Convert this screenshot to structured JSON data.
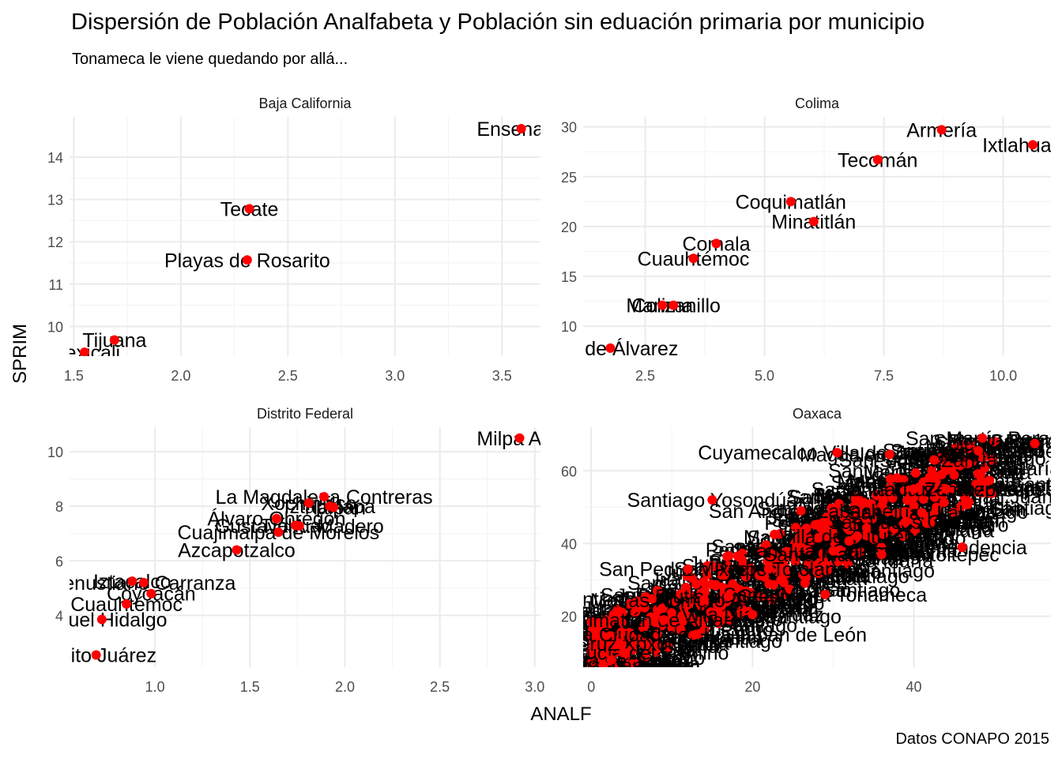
{
  "title": "Dispersión de Población Analfabeta y Población sin eduación primaria por municipio",
  "subtitle": "Tonameca le viene quedando por allá...",
  "caption": "Datos CONAPO 2015",
  "colors": {
    "point": "#ff0000",
    "grid_major": "#ebebeb",
    "grid_minor": "#f5f5f5",
    "label": "#000000"
  },
  "chart_data": {
    "type": "scatter",
    "xlabel": "ANALF",
    "ylabel": "SPRIM",
    "grid": true,
    "facets": [
      {
        "name": "Baja California",
        "xlim": [
          1.48,
          3.68
        ],
        "ylim": [
          9.3,
          14.95
        ],
        "xticks": [
          1.5,
          2.0,
          2.5,
          3.0,
          3.5
        ],
        "yticks": [
          10,
          11,
          12,
          13,
          14
        ],
        "xtick_labels": [
          "1.5",
          "2.0",
          "2.5",
          "3.0",
          "3.5"
        ],
        "ytick_labels": [
          "10",
          "11",
          "12",
          "13",
          "14"
        ],
        "points": [
          {
            "label": "Ensenada",
            "x": 3.59,
            "y": 14.67
          },
          {
            "label": "Tecate",
            "x": 2.32,
            "y": 12.78
          },
          {
            "label": "Playas de Rosarito",
            "x": 2.31,
            "y": 11.57
          },
          {
            "label": "Tijuana",
            "x": 1.69,
            "y": 9.68
          },
          {
            "label": "Mexicali",
            "x": 1.55,
            "y": 9.39
          }
        ]
      },
      {
        "name": "Colima",
        "xlim": [
          1.2,
          11.0
        ],
        "ylim": [
          7.0,
          31.0
        ],
        "xticks": [
          2.5,
          5.0,
          7.5,
          10.0
        ],
        "yticks": [
          10,
          15,
          20,
          25,
          30
        ],
        "xtick_labels": [
          "2.5",
          "5.0",
          "7.5",
          "10.0"
        ],
        "ytick_labels": [
          "10",
          "15",
          "20",
          "25",
          "30"
        ],
        "points": [
          {
            "label": "Armería",
            "x": 8.71,
            "y": 29.7
          },
          {
            "label": "Ixtlahuacán",
            "x": 10.62,
            "y": 28.2
          },
          {
            "label": "Tecomán",
            "x": 7.37,
            "y": 26.7
          },
          {
            "label": "Coquimatlán",
            "x": 5.55,
            "y": 22.5
          },
          {
            "label": "Minatitlán",
            "x": 6.03,
            "y": 20.5
          },
          {
            "label": "Comala",
            "x": 3.99,
            "y": 18.3
          },
          {
            "label": "Cuauhtémoc",
            "x": 3.51,
            "y": 16.8
          },
          {
            "label": "Manzanillo",
            "x": 3.09,
            "y": 12.1
          },
          {
            "label": "Colima",
            "x": 2.86,
            "y": 12.1
          },
          {
            "label": "Villa de Álvarez",
            "x": 1.77,
            "y": 7.8
          }
        ]
      },
      {
        "name": "Distrito Federal",
        "xlim": [
          0.55,
          3.03
        ],
        "ylim": [
          2.1,
          10.9
        ],
        "xticks": [
          1.0,
          1.5,
          2.0,
          2.5,
          3.0
        ],
        "yticks": [
          4,
          6,
          8,
          10
        ],
        "xtick_labels": [
          "1.0",
          "1.5",
          "2.0",
          "2.5",
          "3.0"
        ],
        "ytick_labels": [
          "4",
          "6",
          "8",
          "10"
        ],
        "points": [
          {
            "label": "Milpa Alta",
            "x": 2.92,
            "y": 10.5
          },
          {
            "label": "La Magdalena Contreras",
            "x": 1.89,
            "y": 8.35
          },
          {
            "label": "Xochimilco",
            "x": 1.81,
            "y": 8.12
          },
          {
            "label": "Iztapalapa",
            "x": 1.92,
            "y": 8.0
          },
          {
            "label": "Tlalpan",
            "x": 1.94,
            "y": 7.96
          },
          {
            "label": "Álvaro Obregón",
            "x": 1.64,
            "y": 7.55
          },
          {
            "label": "Gustavo A. Madero",
            "x": 1.76,
            "y": 7.28
          },
          {
            "label": "Tláhuac",
            "x": 1.74,
            "y": 7.3
          },
          {
            "label": "Cuajimalpa de Morelos",
            "x": 1.65,
            "y": 7.05
          },
          {
            "label": "Azcapotzalco",
            "x": 1.43,
            "y": 6.4
          },
          {
            "label": "Iztacalco",
            "x": 0.88,
            "y": 5.25
          },
          {
            "label": "Venustiano Carranza",
            "x": 0.94,
            "y": 5.2
          },
          {
            "label": "Coyoacán",
            "x": 0.98,
            "y": 4.8
          },
          {
            "label": "Cuauhtémoc",
            "x": 0.85,
            "y": 4.42
          },
          {
            "label": "Miguel Hidalgo",
            "x": 0.72,
            "y": 3.85
          },
          {
            "label": "Benito Juárez",
            "x": 0.69,
            "y": 2.55
          }
        ]
      },
      {
        "name": "Oaxaca",
        "xlim": [
          -1.0,
          57.0
        ],
        "ylim": [
          6.0,
          72.0
        ],
        "xticks": [
          0,
          20,
          40
        ],
        "yticks": [
          20,
          40,
          60
        ],
        "xtick_labels": [
          "0",
          "20",
          "40"
        ],
        "ytick_labels": [
          "20",
          "40",
          "60"
        ],
        "points": [
          {
            "label": "San Martín Peras",
            "x": 48.5,
            "y": 69.0
          },
          {
            "label": "Santiago Amoltepec",
            "x": 48.0,
            "y": 65.5
          },
          {
            "label": "Cuyamecalco Villa de Zaragoza",
            "x": 30.5,
            "y": 65.0
          },
          {
            "label": "Coicoyán de las Flores",
            "x": 55.0,
            "y": 67.5
          },
          {
            "label": "San Simón Zahuatlán",
            "x": 42.5,
            "y": 63.0
          },
          {
            "label": "Magdalena Peñasco",
            "x": 37.0,
            "y": 64.5
          },
          {
            "label": "Santa Cruz Zenzontepec",
            "x": 44.0,
            "y": 55.0
          },
          {
            "label": "San Juan Lalana",
            "x": 41.0,
            "y": 48.5
          },
          {
            "label": "Villa de Tututepec",
            "x": 33.0,
            "y": 42.0
          },
          {
            "label": "Santa María Tlahuitoltepec",
            "x": 36.0,
            "y": 37.0
          },
          {
            "label": "Santiago Yosondúa",
            "x": 15.0,
            "y": 52.0
          },
          {
            "label": "San Andrés Zabache",
            "x": 26.0,
            "y": 49.0
          },
          {
            "label": "San Juan Guichicovi",
            "x": 30.0,
            "y": 38.0
          },
          {
            "label": "Santa María Tonameca",
            "x": 29.0,
            "y": 26.0
          },
          {
            "label": "Matías Romero Avendaño",
            "x": 14.0,
            "y": 24.5
          },
          {
            "label": "Zimatlán de Álvarez",
            "x": 9.0,
            "y": 19.0
          },
          {
            "label": "Heroica Ciudad de Huajuapan de León",
            "x": 13.0,
            "y": 15.0
          },
          {
            "label": "Santa Lucía del Camino",
            "x": 4.0,
            "y": 10.0
          },
          {
            "label": "Oaxaca de Juárez",
            "x": 2.5,
            "y": 8.0
          },
          {
            "label": "San Sebastián Tutla",
            "x": 1.5,
            "y": 6.5
          },
          {
            "label": "Santa Cruz Xoxocotlán",
            "x": 3.5,
            "y": 12.5
          },
          {
            "label": "San Pedro Totolápam",
            "x": 22.0,
            "y": 33.0
          },
          {
            "label": "Villa Díaz Ordaz",
            "x": 20.0,
            "y": 20.5
          },
          {
            "label": "Ejutla de Crespo",
            "x": 17.0,
            "y": 25.5
          },
          {
            "label": "San Pedro Mixtepec",
            "x": 12.0,
            "y": 33.0
          },
          {
            "label": "Santa María Zacatepec",
            "x": 40.0,
            "y": 55.0
          },
          {
            "label": "Independencia",
            "x": 46.0,
            "y": 39.0
          },
          {
            "label": "San Lucas Ojitlán",
            "x": 39.0,
            "y": 46.0
          }
        ]
      }
    ]
  }
}
